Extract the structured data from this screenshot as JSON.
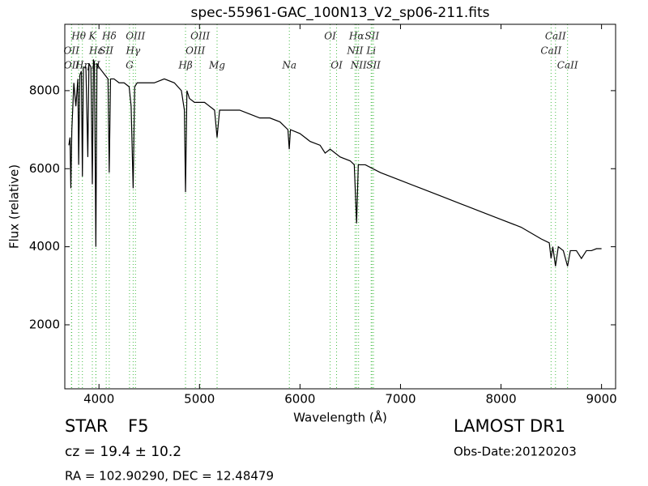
{
  "chart_data": {
    "type": "line",
    "title": "spec-55961-GAC_100N13_V2_sp06-211.fits",
    "x_label": "Wavelength (Å)",
    "y_label": "Flux (relative)",
    "xlim": [
      3660,
      9140
    ],
    "ylim": [
      360,
      9700
    ],
    "xticks": [
      4000,
      5000,
      6000,
      7000,
      8000,
      9000
    ],
    "yticks": [
      2000,
      4000,
      6000,
      8000
    ],
    "series": [
      {
        "color": "#000000",
        "x": [
          3700,
          3712,
          3720,
          3730,
          3750,
          3770,
          3790,
          3798,
          3810,
          3825,
          3835,
          3845,
          3870,
          3889,
          3900,
          3920,
          3934,
          3945,
          3955,
          3969,
          3980,
          4000,
          4030,
          4060,
          4090,
          4102,
          4115,
          4150,
          4200,
          4250,
          4300,
          4320,
          4340,
          4355,
          4380,
          4450,
          4550,
          4650,
          4750,
          4820,
          4850,
          4861,
          4875,
          4900,
          4950,
          5050,
          5150,
          5175,
          5200,
          5300,
          5400,
          5500,
          5600,
          5700,
          5800,
          5880,
          5893,
          5905,
          6000,
          6100,
          6200,
          6250,
          6300,
          6400,
          6500,
          6540,
          6563,
          6580,
          6650,
          6800,
          7000,
          7200,
          7400,
          7600,
          7800,
          8000,
          8200,
          8400,
          8480,
          8498,
          8515,
          8542,
          8570,
          8620,
          8662,
          8690,
          8750,
          8800,
          8850,
          8900,
          8950,
          9000
        ],
        "values": [
          6600,
          6800,
          5500,
          7000,
          8200,
          7600,
          8300,
          6100,
          8400,
          8500,
          5800,
          8600,
          8600,
          6300,
          8700,
          8600,
          5600,
          8800,
          8700,
          4000,
          8700,
          8600,
          8500,
          8400,
          8300,
          5900,
          8300,
          8300,
          8200,
          8200,
          8100,
          7600,
          5500,
          8100,
          8200,
          8200,
          8200,
          8300,
          8200,
          8000,
          7500,
          5400,
          8000,
          7800,
          7700,
          7700,
          7500,
          6800,
          7500,
          7500,
          7500,
          7400,
          7300,
          7300,
          7200,
          7000,
          6500,
          7000,
          6900,
          6700,
          6600,
          6400,
          6500,
          6300,
          6200,
          6100,
          4600,
          6100,
          6100,
          5900,
          5700,
          5500,
          5300,
          5100,
          4900,
          4700,
          4500,
          4200,
          4100,
          3700,
          4000,
          3500,
          4000,
          3900,
          3500,
          3900,
          3900,
          3700,
          3900,
          3900,
          3950,
          3950
        ]
      }
    ],
    "line_marker_color": "#44bb44",
    "spectral_lines": [
      {
        "label": "Hθ",
        "wavelength": 3798,
        "row": 1
      },
      {
        "label": "K",
        "wavelength": 3934,
        "row": 1
      },
      {
        "label": "Hδ",
        "wavelength": 4102,
        "row": 1
      },
      {
        "label": "OIII",
        "wavelength": 4363,
        "row": 1
      },
      {
        "label": "OIII",
        "wavelength": 5007,
        "row": 1
      },
      {
        "label": "OI",
        "wavelength": 6300,
        "row": 1
      },
      {
        "label": "Hα",
        "wavelength": 6563,
        "row": 1
      },
      {
        "label": "SII",
        "wavelength": 6716,
        "row": 1
      },
      {
        "label": "CaII",
        "wavelength": 8542,
        "row": 1
      },
      {
        "label": "OII",
        "wavelength": 3726,
        "row": 2
      },
      {
        "label": "Hε",
        "wavelength": 3970,
        "row": 2
      },
      {
        "label": "SII",
        "wavelength": 4072,
        "row": 2
      },
      {
        "label": "Hγ",
        "wavelength": 4340,
        "row": 2
      },
      {
        "label": "OIII",
        "wavelength": 4959,
        "row": 2
      },
      {
        "label": "NII",
        "wavelength": 6548,
        "row": 2
      },
      {
        "label": "Li",
        "wavelength": 6708,
        "row": 2
      },
      {
        "label": "CaII",
        "wavelength": 8498,
        "row": 2
      },
      {
        "label": "OII",
        "wavelength": 3729,
        "row": 3
      },
      {
        "label": "Hη",
        "wavelength": 3835,
        "row": 3
      },
      {
        "label": "H",
        "wavelength": 3969,
        "row": 3
      },
      {
        "label": "G",
        "wavelength": 4304,
        "row": 3
      },
      {
        "label": "Hβ",
        "wavelength": 4861,
        "row": 3
      },
      {
        "label": "Mg",
        "wavelength": 5175,
        "row": 3
      },
      {
        "label": "Na",
        "wavelength": 5894,
        "row": 3
      },
      {
        "label": "OI",
        "wavelength": 6364,
        "row": 3
      },
      {
        "label": "NII",
        "wavelength": 6583,
        "row": 3
      },
      {
        "label": "SII",
        "wavelength": 6731,
        "row": 3
      },
      {
        "label": "CaII",
        "wavelength": 8662,
        "row": 3
      }
    ],
    "annotations": {
      "class": "STAR",
      "subclass": "F5",
      "redshift": "cz = 19.4 ± 10.2",
      "coordinates": "RA = 102.90290, DEC = 12.48479",
      "survey": "LAMOST DR1",
      "obs_date": "Obs-Date:20120203"
    }
  }
}
